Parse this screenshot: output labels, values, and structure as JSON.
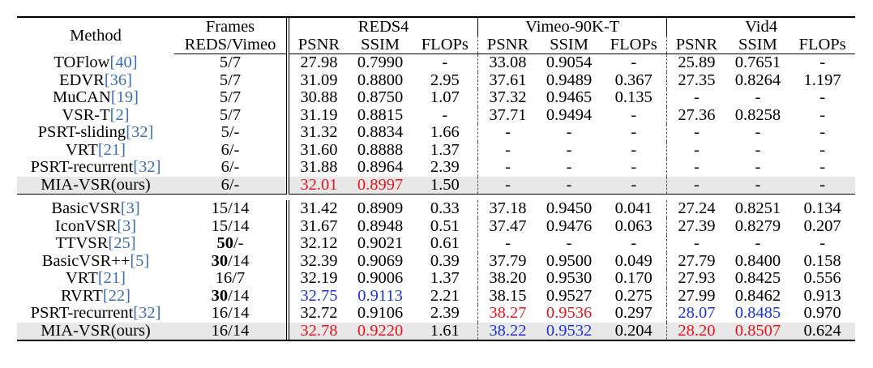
{
  "header": {
    "method": "Method",
    "frames_top": "Frames",
    "frames_bottom": "REDS/Vimeo",
    "datasets": [
      "REDS4",
      "Vimeo-90K-T",
      "Vid4"
    ],
    "metrics": [
      "PSNR",
      "SSIM",
      "FLOPs"
    ]
  },
  "group1": [
    {
      "name": "TOFlow",
      "cite": "[40]",
      "frames": "5/7",
      "reds": [
        "27.98",
        "0.7990",
        "-"
      ],
      "vimeo": [
        "33.08",
        "0.9054",
        "-"
      ],
      "vid4": [
        "25.89",
        "0.7651",
        "-"
      ]
    },
    {
      "name": "EDVR",
      "cite": "[36]",
      "frames": "5/7",
      "reds": [
        "31.09",
        "0.8800",
        "2.95"
      ],
      "vimeo": [
        "37.61",
        "0.9489",
        "0.367"
      ],
      "vid4": [
        "27.35",
        "0.8264",
        "1.197"
      ]
    },
    {
      "name": "MuCAN",
      "cite": "[19]",
      "frames": "5/7",
      "reds": [
        "30.88",
        "0.8750",
        "1.07"
      ],
      "vimeo": [
        "37.32",
        "0.9465",
        "0.135"
      ],
      "vid4": [
        "-",
        "-",
        "-"
      ]
    },
    {
      "name": "VSR-T",
      "cite": "[2]",
      "frames": "5/7",
      "reds": [
        "31.19",
        "0.8815",
        "-"
      ],
      "vimeo": [
        "37.71",
        "0.9494",
        "-"
      ],
      "vid4": [
        "27.36",
        "0.8258",
        "-"
      ]
    },
    {
      "name": "PSRT-sliding",
      "cite": "[32]",
      "frames": "5/-",
      "reds": [
        "31.32",
        "0.8834",
        "1.66"
      ],
      "vimeo": [
        "-",
        "-",
        "-"
      ],
      "vid4": [
        "-",
        "-",
        "-"
      ]
    },
    {
      "name": "VRT",
      "cite": "[21]",
      "frames": "6/-",
      "reds": [
        "31.60",
        "0.8888",
        "1.37"
      ],
      "vimeo": [
        "-",
        "-",
        "-"
      ],
      "vid4": [
        "-",
        "-",
        "-"
      ]
    },
    {
      "name": "PSRT-recurrent",
      "cite": "[32]",
      "frames": "6/-",
      "reds": [
        "31.88",
        "0.8964",
        "2.39"
      ],
      "vimeo": [
        "-",
        "-",
        "-"
      ],
      "vid4": [
        "-",
        "-",
        "-"
      ]
    },
    {
      "name": "MIA-VSR(ours)",
      "cite": "",
      "frames": "6/-",
      "reds": [
        "32.01",
        "0.8997",
        "1.50"
      ],
      "vimeo": [
        "-",
        "-",
        "-"
      ],
      "vid4": [
        "-",
        "-",
        "-"
      ]
    }
  ],
  "group2": [
    {
      "name": "BasicVSR",
      "cite": "[3]",
      "frames_a": "15",
      "frames_b": "/14",
      "reds": [
        "31.42",
        "0.8909",
        "0.33"
      ],
      "vimeo": [
        "37.18",
        "0.9450",
        "0.041"
      ],
      "vid4": [
        "27.24",
        "0.8251",
        "0.134"
      ]
    },
    {
      "name": "IconVSR",
      "cite": "[3]",
      "frames_a": "15",
      "frames_b": "/14",
      "reds": [
        "31.67",
        "0.8948",
        "0.51"
      ],
      "vimeo": [
        "37.47",
        "0.9476",
        "0.063"
      ],
      "vid4": [
        "27.39",
        "0.8279",
        "0.207"
      ]
    },
    {
      "name": "TTVSR",
      "cite": "[25]",
      "frames_a": "50",
      "frames_b": "/-",
      "reds": [
        "32.12",
        "0.9021",
        "0.61"
      ],
      "vimeo": [
        "-",
        "-",
        "-"
      ],
      "vid4": [
        "-",
        "-",
        "-"
      ]
    },
    {
      "name": "BasicVSR++",
      "cite": "[5]",
      "frames_a": "30",
      "frames_b": "/14",
      "reds": [
        "32.39",
        "0.9069",
        "0.39"
      ],
      "vimeo": [
        "37.79",
        "0.9500",
        "0.049"
      ],
      "vid4": [
        "27.79",
        "0.8400",
        "0.158"
      ]
    },
    {
      "name": "VRT",
      "cite": "[21]",
      "frames_a": "16",
      "frames_b": "/7",
      "reds": [
        "32.19",
        "0.9006",
        "1.37"
      ],
      "vimeo": [
        "38.20",
        "0.9530",
        "0.170"
      ],
      "vid4": [
        "27.93",
        "0.8425",
        "0.556"
      ]
    },
    {
      "name": "RVRT",
      "cite": "[22]",
      "frames_a": "30",
      "frames_b": "/14",
      "reds": [
        "32.75",
        "0.9113",
        "2.21"
      ],
      "vimeo": [
        "38.15",
        "0.9527",
        "0.275"
      ],
      "vid4": [
        "27.99",
        "0.8462",
        "0.913"
      ]
    },
    {
      "name": "PSRT-recurrent",
      "cite": "[32]",
      "frames_a": "16",
      "frames_b": "/14",
      "reds": [
        "32.72",
        "0.9106",
        "2.39"
      ],
      "vimeo": [
        "38.27",
        "0.9536",
        "0.297"
      ],
      "vid4": [
        "28.07",
        "0.8485",
        "0.970"
      ]
    },
    {
      "name": "MIA-VSR(ours)",
      "cite": "",
      "frames_a": "16",
      "frames_b": "/14",
      "reds": [
        "32.78",
        "0.9220",
        "1.61"
      ],
      "vimeo": [
        "38.22",
        "0.9532",
        "0.204"
      ],
      "vid4": [
        "28.20",
        "0.8507",
        "0.624"
      ]
    }
  ],
  "colors": {
    "best": "#e8161c",
    "second": "#1a34e0",
    "citation": "#3a6fb7",
    "highlight_row": "#e8e8e8"
  }
}
